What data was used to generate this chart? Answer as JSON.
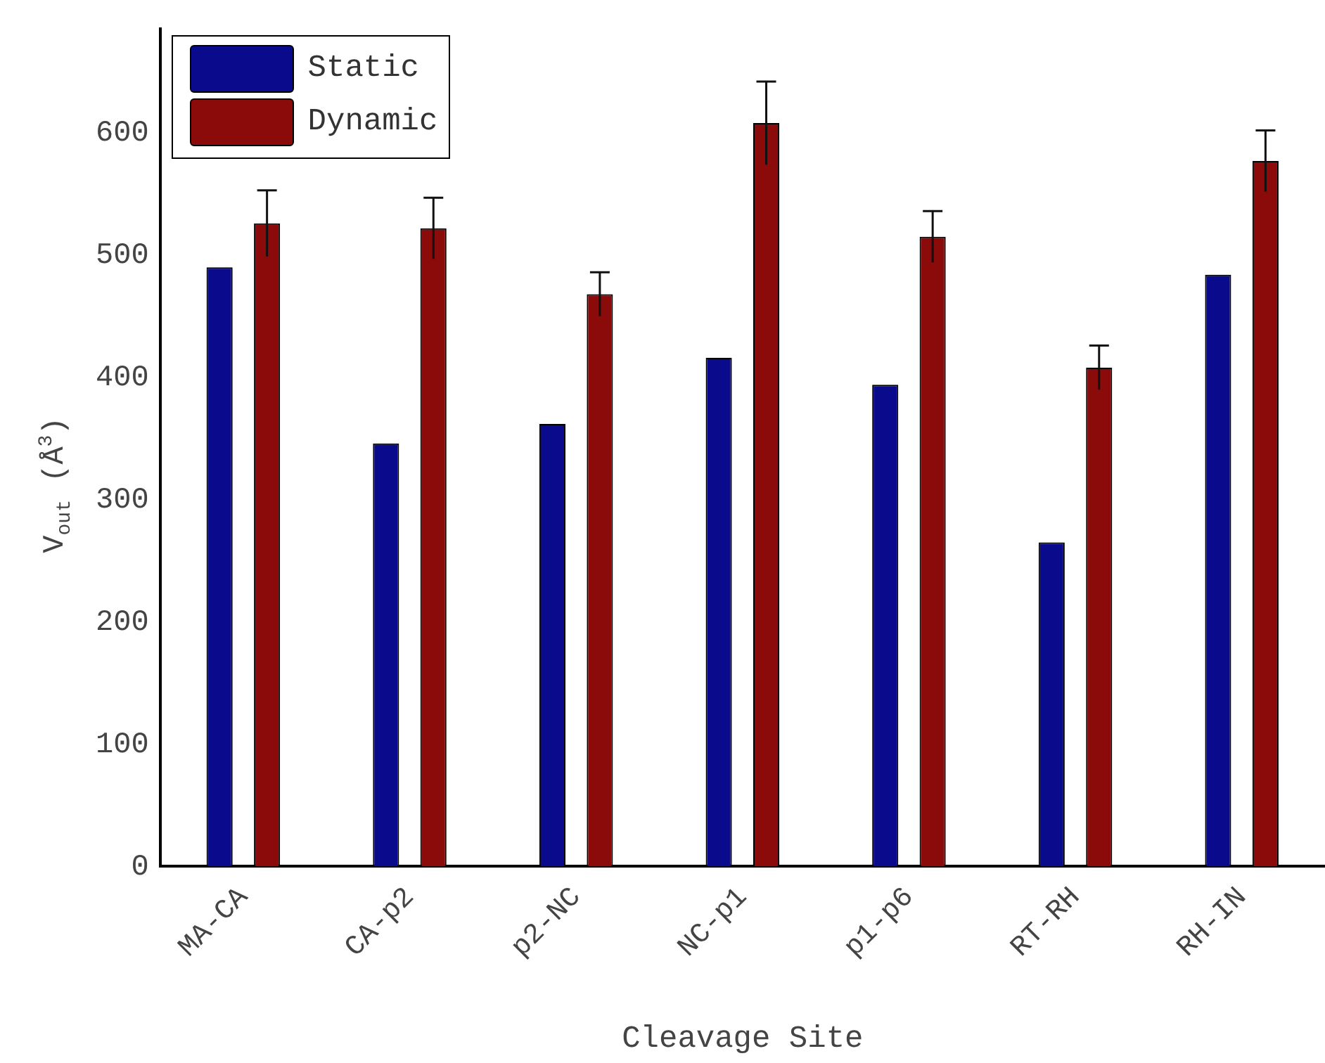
{
  "chart_data": {
    "type": "bar",
    "xlabel": "Cleavage Site",
    "ylabel": "V$_{out}$ (Å$^{3}$)",
    "categories": [
      "MA-CA",
      "CA-p2",
      "p2-NC",
      "NC-p1",
      "p1-p6",
      "RT-RH",
      "RH-IN"
    ],
    "series": [
      {
        "name": "Static",
        "color": "#0a0a8c",
        "values": [
          490,
          346,
          362,
          416,
          394,
          265,
          484
        ]
      },
      {
        "name": "Dynamic",
        "color": "#8b0a0a",
        "values": [
          526,
          522,
          468,
          608,
          515,
          408,
          577
        ],
        "errors": [
          27,
          25,
          18,
          34,
          21,
          18,
          25
        ]
      }
    ],
    "ylim": [
      0,
      685
    ],
    "yticks": [
      0,
      100,
      200,
      300,
      400,
      500,
      600
    ],
    "legend": "top left",
    "grid": false
  }
}
